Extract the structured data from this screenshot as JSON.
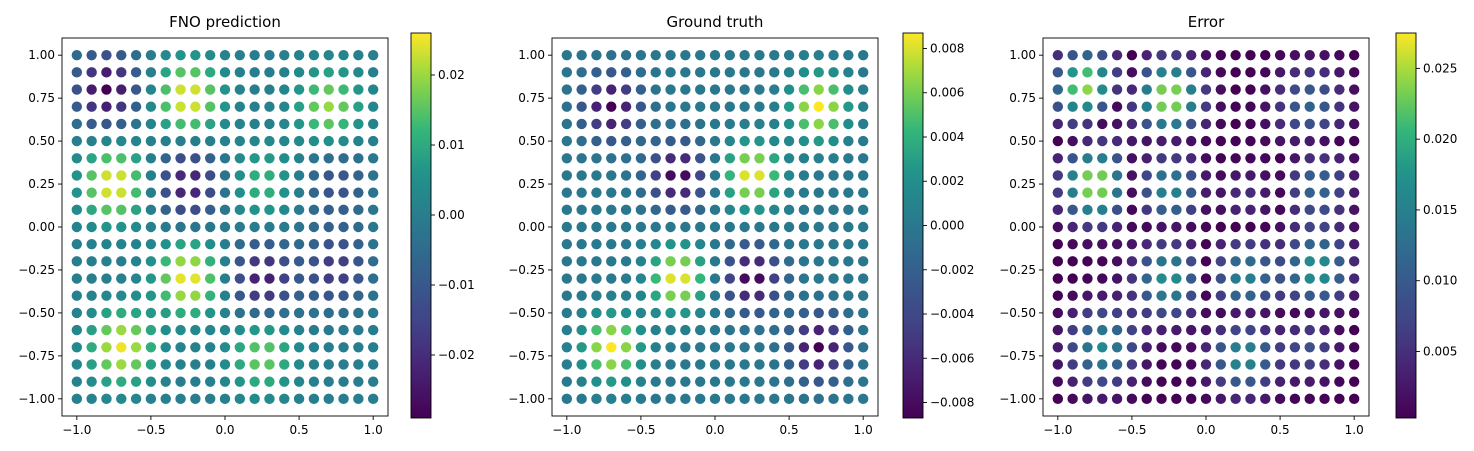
{
  "chart_data": [
    {
      "type": "scatter",
      "title": "FNO prediction",
      "grid_size": 21,
      "x": [
        -1.0,
        1.0
      ],
      "y": [
        -1.0,
        1.0
      ],
      "xlim": [
        -1.1,
        1.1
      ],
      "ylim": [
        -1.1,
        1.1
      ],
      "xticks": [
        -1.0,
        -0.5,
        0.0,
        0.5,
        1.0
      ],
      "xtick_labels": [
        "−1.0",
        "−0.5",
        "0.0",
        "0.5",
        "1.0"
      ],
      "yticks": [
        1.0,
        0.75,
        0.5,
        0.25,
        0.0,
        -0.25,
        -0.5,
        -0.75,
        -1.0
      ],
      "ytick_labels": [
        "1.00",
        "0.75",
        "0.50",
        "0.25",
        "0.00",
        "−0.25",
        "−0.50",
        "−0.75",
        "−1.00"
      ],
      "field": "prediction",
      "colormap": "viridis",
      "color_range": [
        -0.029,
        0.026
      ],
      "colorbar_ticks": [
        0.02,
        0.01,
        0.0,
        -0.01,
        -0.02
      ],
      "colorbar_tick_labels": [
        "0.02",
        "0.01",
        "0.00",
        "−0.01",
        "−0.02"
      ],
      "grid": false
    },
    {
      "type": "scatter",
      "title": "Ground truth",
      "grid_size": 21,
      "x": [
        -1.0,
        1.0
      ],
      "y": [
        -1.0,
        1.0
      ],
      "xlim": [
        -1.1,
        1.1
      ],
      "ylim": [
        -1.1,
        1.1
      ],
      "xticks": [
        -1.0,
        -0.5,
        0.0,
        0.5,
        1.0
      ],
      "xtick_labels": [
        "−1.0",
        "−0.5",
        "0.0",
        "0.5",
        "1.0"
      ],
      "yticks": [
        1.0,
        0.75,
        0.5,
        0.25,
        0.0,
        -0.25,
        -0.5,
        -0.75,
        -1.0
      ],
      "ytick_labels": [
        "1.00",
        "0.75",
        "0.50",
        "0.25",
        "0.00",
        "−0.25",
        "−0.50",
        "−0.75",
        "−1.00"
      ],
      "field": "truth",
      "colormap": "viridis",
      "color_range": [
        -0.0087,
        0.0087
      ],
      "colorbar_ticks": [
        0.008,
        0.006,
        0.004,
        0.002,
        0.0,
        -0.002,
        -0.004,
        -0.006,
        -0.008
      ],
      "colorbar_tick_labels": [
        "0.008",
        "0.006",
        "0.004",
        "0.002",
        "0.000",
        "−0.002",
        "−0.004",
        "−0.006",
        "−0.008"
      ],
      "grid": false
    },
    {
      "type": "scatter",
      "title": "Error",
      "grid_size": 21,
      "x": [
        -1.0,
        1.0
      ],
      "y": [
        -1.0,
        1.0
      ],
      "xlim": [
        -1.1,
        1.1
      ],
      "ylim": [
        -1.1,
        1.1
      ],
      "xticks": [
        -1.0,
        -0.5,
        0.0,
        0.5,
        1.0
      ],
      "xtick_labels": [
        "−1.0",
        "−0.5",
        "0.0",
        "0.5",
        "1.0"
      ],
      "yticks": [
        1.0,
        0.75,
        0.5,
        0.25,
        0.0,
        -0.25,
        -0.5,
        -0.75,
        -1.0
      ],
      "ytick_labels": [
        "1.00",
        "0.75",
        "0.50",
        "0.25",
        "0.00",
        "−0.25",
        "−0.50",
        "−0.75",
        "−1.00"
      ],
      "field": "error",
      "colormap": "viridis",
      "color_range": [
        0.0003,
        0.0275
      ],
      "colorbar_ticks": [
        0.025,
        0.02,
        0.015,
        0.01,
        0.005
      ],
      "colorbar_tick_labels": [
        "0.025",
        "0.020",
        "0.015",
        "0.010",
        "0.005"
      ],
      "grid": false
    }
  ]
}
